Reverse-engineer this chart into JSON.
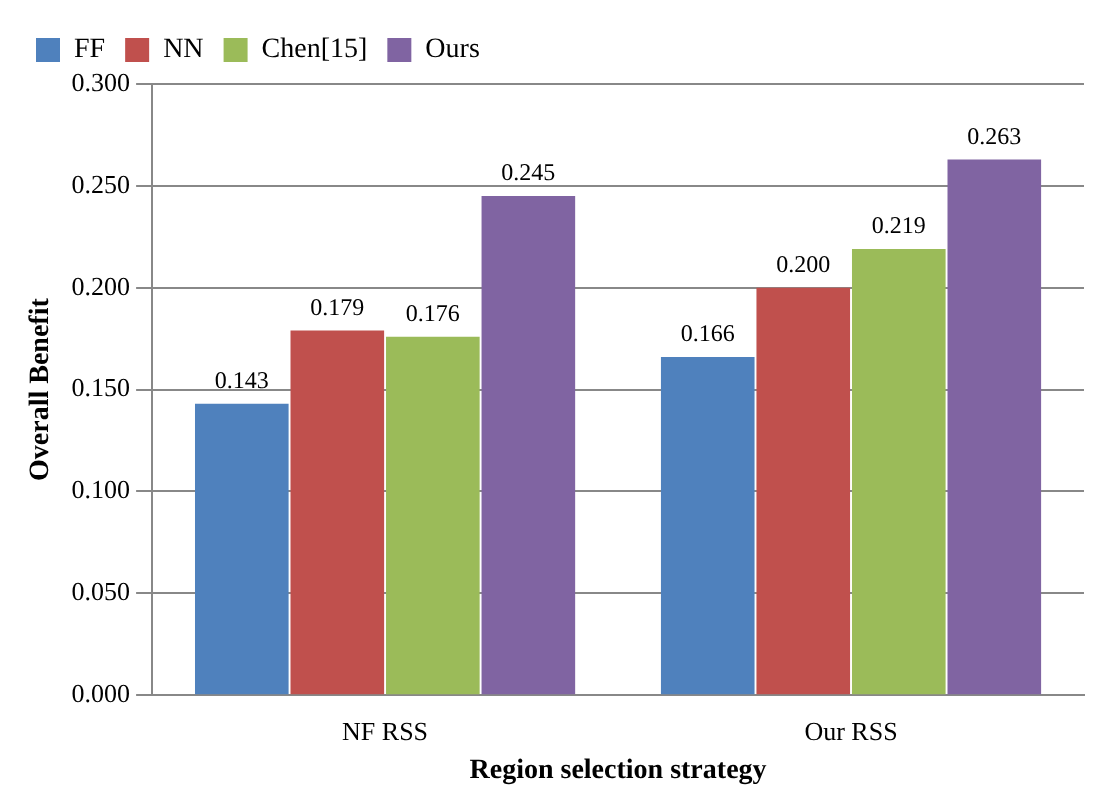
{
  "chart_data": {
    "type": "bar",
    "xlabel": "Region selection strategy",
    "ylabel": "Overall Benefit",
    "categories": [
      "NF RSS",
      "Our RSS"
    ],
    "series": [
      {
        "name": "FF",
        "color": "#4f81bd",
        "values": [
          0.143,
          0.166
        ],
        "value_labels": [
          "0.143",
          "0.166"
        ]
      },
      {
        "name": "NN",
        "color": "#c0504d",
        "values": [
          0.179,
          0.2
        ],
        "value_labels": [
          "0.179",
          "0.200"
        ]
      },
      {
        "name": "Chen[15]",
        "color": "#9bbb59",
        "values": [
          0.176,
          0.219
        ],
        "value_labels": [
          "0.176",
          "0.219"
        ]
      },
      {
        "name": "Ours",
        "color": "#8064a2",
        "values": [
          0.245,
          0.263
        ],
        "value_labels": [
          "0.245",
          "0.263"
        ]
      }
    ],
    "ylim": [
      0,
      0.3
    ],
    "yticks": [
      {
        "value": 0,
        "label": "0.000"
      },
      {
        "value": 0.05,
        "label": "0.050"
      },
      {
        "value": 0.1,
        "label": "0.100"
      },
      {
        "value": 0.15,
        "label": "0.150"
      },
      {
        "value": 0.2,
        "label": "0.200"
      },
      {
        "value": 0.25,
        "label": "0.250"
      },
      {
        "value": 0.3,
        "label": "0.300"
      }
    ],
    "grid": "y",
    "legend": "top left"
  }
}
